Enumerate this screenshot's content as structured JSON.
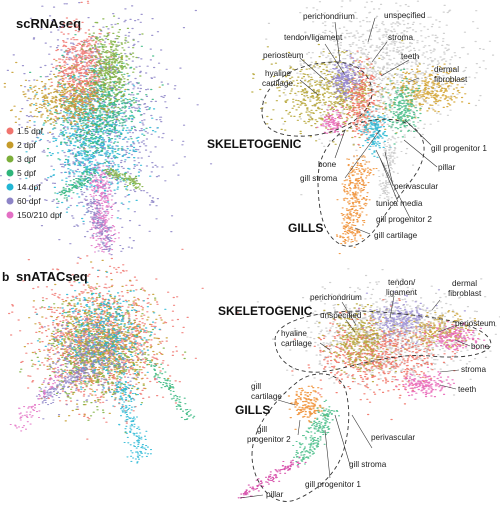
{
  "panels": {
    "top": {
      "letter": "",
      "title": "scRNAseq"
    },
    "bottom": {
      "letter": "b",
      "title": "snATACseq"
    }
  },
  "legend": {
    "items": [
      {
        "label": "1.5 dpf",
        "color": "#f0746e"
      },
      {
        "label": "2 dpf",
        "color": "#c59b2a"
      },
      {
        "label": "3 dpf",
        "color": "#7cae3a"
      },
      {
        "label": "5 dpf",
        "color": "#2fb57b"
      },
      {
        "label": "14 dpf",
        "color": "#22b6d4"
      },
      {
        "label": "60 dpf",
        "color": "#8d84c7"
      },
      {
        "label": "150/210 dpf",
        "color": "#e36fc4"
      }
    ]
  },
  "groups": {
    "rna_skeletogenic": "SKELETOGENIC",
    "rna_gills": "GILLS",
    "atac_skeletogenic": "SKELETOGENIC",
    "atac_gills": "GILLS"
  },
  "rna_labels": {
    "perichondrium": "perichondrium",
    "unspecified": "unspecified",
    "tendon": "tendon/ligament",
    "stroma": "stroma",
    "teeth": "teeth",
    "periosteum": "periosteum",
    "hyaline1": "hyaline",
    "hyaline2": "cartilage",
    "dermal1": "dermal",
    "dermal2": "fibroblast",
    "gill_prog1": "gill progenitor 1",
    "pillar": "pillar",
    "bone": "bone",
    "gill_stroma": "gill stroma",
    "perivascular": "perivascular",
    "tunica": "tunica media",
    "gill_prog2": "gill progenitor 2",
    "gill_cartilage": "gill cartilage"
  },
  "atac_labels": {
    "perichondrium": "perichondrium",
    "tendon1": "tendon/",
    "tendon2": "ligament",
    "dermal1": "dermal",
    "dermal2": "fibroblast",
    "unspecified": "unspecified",
    "periosteum": "periosteum",
    "bone": "bone",
    "hyaline1": "hyaline",
    "hyaline2": "cartilage",
    "stroma": "stroma",
    "teeth": "teeth",
    "gill_cart1": "gill",
    "gill_cart2": "cartilage",
    "gill_prog2a": "gill",
    "gill_prog2b": "progenitor 2",
    "perivascular": "perivascular",
    "gill_stroma": "gill stroma",
    "gill_prog1": "gill progenitor 1",
    "pillar": "pillar"
  },
  "colors": {
    "unspecified": "#c8c8c8",
    "stroma": "#f06a5c",
    "hyaline": "#b3a22e",
    "perichondrium": "#8f7fd0",
    "tendon": "#9c8fd6",
    "periosteum": "#c9a33a",
    "dermal": "#d2a12a",
    "bone": "#e85fb4",
    "teeth": "#e85fb4",
    "gill": "#3fba82",
    "gill_cartilage": "#ef8a2a",
    "pillar": "#d23aa0",
    "cyan": "#22b6d4"
  }
}
